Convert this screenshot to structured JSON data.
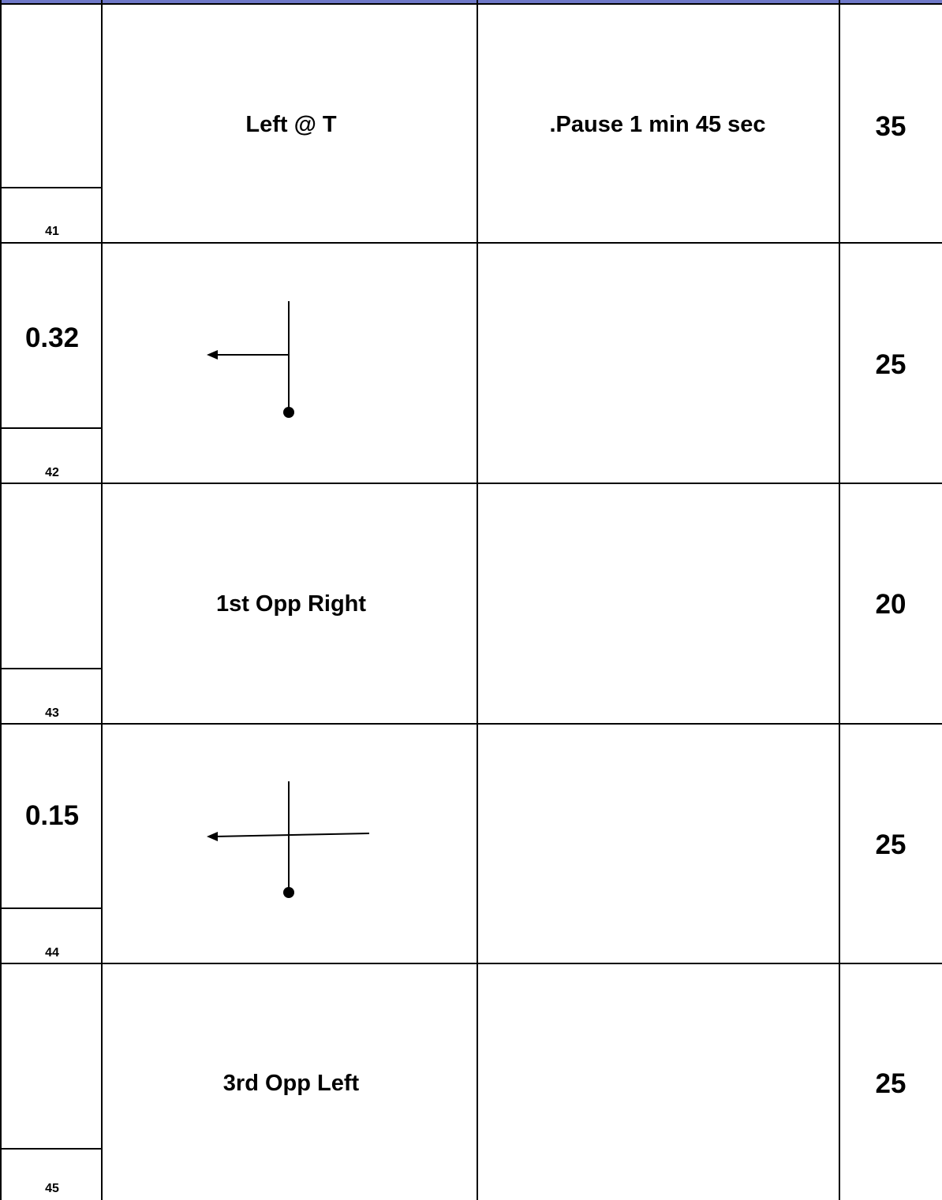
{
  "rows": [
    {
      "number": "41",
      "distance": "",
      "description": "Left @ T",
      "note": ".Pause 1 min 45 sec",
      "speed": "35",
      "diagram": "none"
    },
    {
      "number": "42",
      "distance": "0.32",
      "description": "",
      "note": "",
      "speed": "25",
      "diagram": "t-junction-left-arrow-icon"
    },
    {
      "number": "43",
      "distance": "",
      "description": "1st Opp Right",
      "note": "",
      "speed": "20",
      "diagram": "none"
    },
    {
      "number": "44",
      "distance": "0.15",
      "description": "",
      "note": "",
      "speed": "25",
      "diagram": "crossroads-left-arrow-icon"
    },
    {
      "number": "45",
      "distance": "",
      "description": "3rd Opp Left",
      "note": "",
      "speed": "25",
      "diagram": "none"
    }
  ],
  "colors": {
    "border": "#000000",
    "top_strip": "#1a237e",
    "background": "#ffffff"
  }
}
